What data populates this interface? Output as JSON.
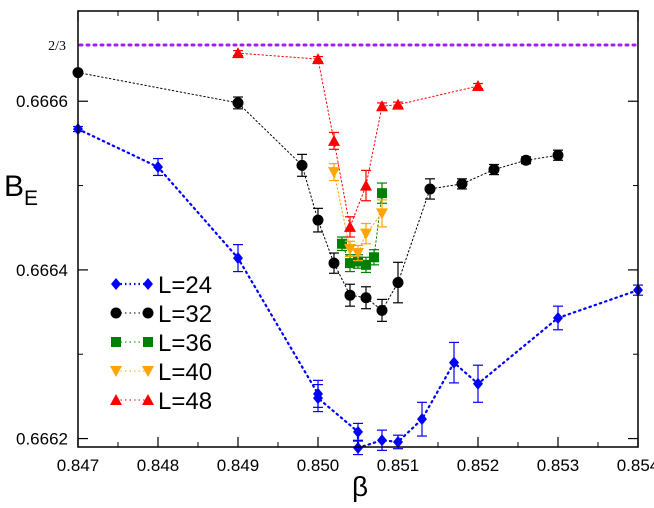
{
  "chart_data": {
    "type": "scatter",
    "xlabel": "β",
    "ylabel_main": "B",
    "ylabel_sub": "E",
    "xlim": [
      0.847,
      0.854
    ],
    "ylim": [
      0.66619,
      0.666707
    ],
    "x_ticks": [
      {
        "value": 0.847,
        "label": "0.847"
      },
      {
        "value": 0.848,
        "label": "0.848"
      },
      {
        "value": 0.849,
        "label": "0.849"
      },
      {
        "value": 0.85,
        "label": "0.850"
      },
      {
        "value": 0.851,
        "label": "0.851"
      },
      {
        "value": 0.852,
        "label": "0.852"
      },
      {
        "value": 0.853,
        "label": "0.853"
      },
      {
        "value": 0.854,
        "label": "0.854"
      }
    ],
    "y_ticks": [
      {
        "value": 0.6662,
        "label": "0.6662"
      },
      {
        "value": 0.6664,
        "label": "0.6664"
      },
      {
        "value": 0.6666,
        "label": "0.6666"
      }
    ],
    "reference_line": {
      "value": 0.6666667,
      "label": "2/3",
      "color": "#a020f0"
    },
    "series": [
      {
        "name": "L=24",
        "color": "#0000ff",
        "marker": "diamond",
        "points": [
          {
            "x": 0.847,
            "y": 0.666567,
            "err": 3e-06
          },
          {
            "x": 0.848,
            "y": 0.666522,
            "err": 1e-05
          },
          {
            "x": 0.849,
            "y": 0.666414,
            "err": 1.6e-05
          },
          {
            "x": 0.85,
            "y": 0.666253,
            "err": 1.6e-05
          },
          {
            "x": 0.85,
            "y": 0.666248,
            "err": 1.6e-05
          },
          {
            "x": 0.8505,
            "y": 0.666208,
            "err": 1e-05
          },
          {
            "x": 0.8505,
            "y": 0.666189,
            "err": 8e-06
          },
          {
            "x": 0.8508,
            "y": 0.666198,
            "err": 1.2e-05
          },
          {
            "x": 0.851,
            "y": 0.666196,
            "err": 8e-06
          },
          {
            "x": 0.8513,
            "y": 0.666223,
            "err": 2e-05
          },
          {
            "x": 0.8517,
            "y": 0.66629,
            "err": 2.4e-05
          },
          {
            "x": 0.852,
            "y": 0.666265,
            "err": 2.2e-05
          },
          {
            "x": 0.853,
            "y": 0.666343,
            "err": 1.4e-05
          },
          {
            "x": 0.854,
            "y": 0.666376,
            "err": 6e-06
          }
        ]
      },
      {
        "name": "L=32",
        "color": "#000000",
        "marker": "circle",
        "points": [
          {
            "x": 0.847,
            "y": 0.666634,
            "err": 2e-06
          },
          {
            "x": 0.849,
            "y": 0.666598,
            "err": 7e-06
          },
          {
            "x": 0.8498,
            "y": 0.666524,
            "err": 1.3e-05
          },
          {
            "x": 0.85,
            "y": 0.666459,
            "err": 1.4e-05
          },
          {
            "x": 0.8502,
            "y": 0.666408,
            "err": 1.2e-05
          },
          {
            "x": 0.8504,
            "y": 0.66637,
            "err": 1.3e-05
          },
          {
            "x": 0.8506,
            "y": 0.666367,
            "err": 1.3e-05
          },
          {
            "x": 0.8508,
            "y": 0.666352,
            "err": 1.3e-05
          },
          {
            "x": 0.851,
            "y": 0.666385,
            "err": 2.4e-05
          },
          {
            "x": 0.8514,
            "y": 0.666496,
            "err": 1.2e-05
          },
          {
            "x": 0.8518,
            "y": 0.666502,
            "err": 6e-06
          },
          {
            "x": 0.8522,
            "y": 0.666519,
            "err": 6e-06
          },
          {
            "x": 0.8526,
            "y": 0.66653,
            "err": 4e-06
          },
          {
            "x": 0.853,
            "y": 0.666536,
            "err": 6e-06
          }
        ]
      },
      {
        "name": "L=36",
        "color": "#008000",
        "marker": "square",
        "points": [
          {
            "x": 0.8503,
            "y": 0.666431,
            "err": 8e-06
          },
          {
            "x": 0.8504,
            "y": 0.666408,
            "err": 1e-05
          },
          {
            "x": 0.8505,
            "y": 0.66641,
            "err": 8e-06
          },
          {
            "x": 0.8506,
            "y": 0.666406,
            "err": 9e-06
          },
          {
            "x": 0.8507,
            "y": 0.666415,
            "err": 9e-06
          },
          {
            "x": 0.8508,
            "y": 0.666491,
            "err": 1.2e-05
          }
        ]
      },
      {
        "name": "L=40",
        "color": "#ffa500",
        "marker": "triangle-down",
        "points": [
          {
            "x": 0.8502,
            "y": 0.666516,
            "err": 1e-05
          },
          {
            "x": 0.8504,
            "y": 0.666425,
            "err": 9e-06
          },
          {
            "x": 0.8505,
            "y": 0.66642,
            "err": 9e-06
          },
          {
            "x": 0.8506,
            "y": 0.666443,
            "err": 1.2e-05
          },
          {
            "x": 0.8508,
            "y": 0.666467,
            "err": 1.6e-05
          }
        ]
      },
      {
        "name": "L=48",
        "color": "#ff0000",
        "marker": "triangle-up",
        "points": [
          {
            "x": 0.849,
            "y": 0.666657,
            "err": 3e-06
          },
          {
            "x": 0.85,
            "y": 0.66665,
            "err": 3e-06
          },
          {
            "x": 0.8502,
            "y": 0.666553,
            "err": 1e-05
          },
          {
            "x": 0.8504,
            "y": 0.666451,
            "err": 1.2e-05
          },
          {
            "x": 0.8506,
            "y": 0.6665,
            "err": 1.8e-05
          },
          {
            "x": 0.8508,
            "y": 0.666594,
            "err": 4e-06
          },
          {
            "x": 0.851,
            "y": 0.666596,
            "err": 3e-06
          },
          {
            "x": 0.852,
            "y": 0.666618,
            "err": 3e-06
          }
        ]
      }
    ],
    "legend": {
      "position": "bottom-left"
    }
  }
}
